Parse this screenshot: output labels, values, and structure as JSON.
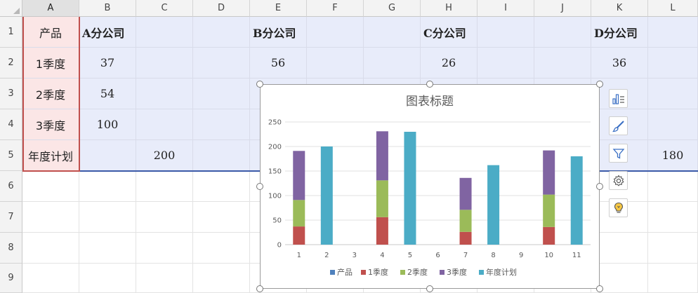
{
  "columns": [
    "A",
    "B",
    "C",
    "D",
    "E",
    "F",
    "G",
    "H",
    "I",
    "J",
    "K",
    "L"
  ],
  "rows": [
    "1",
    "2",
    "3",
    "4",
    "5",
    "6",
    "7",
    "8",
    "9"
  ],
  "cells": {
    "A1": "产品",
    "B1": "A分公司",
    "E1": "B分公司",
    "H1": "C分公司",
    "K1": "D分公司",
    "A2": "1季度",
    "B2": "37",
    "E2": "56",
    "H2": "26",
    "K2": "36",
    "A3": "2季度",
    "B3": "54",
    "A4": "3季度",
    "B4": "100",
    "A5": "年度计划",
    "C5": "200",
    "L5": "180"
  },
  "chart_data": {
    "type": "bar",
    "stacked": true,
    "title": "图表标题",
    "categories": [
      "1",
      "2",
      "3",
      "4",
      "5",
      "6",
      "7",
      "8",
      "9",
      "10",
      "11"
    ],
    "ylim": [
      0,
      250
    ],
    "yticks": [
      "0",
      "50",
      "100",
      "150",
      "200",
      "250"
    ],
    "grid": true,
    "legend_position": "bottom",
    "series": [
      {
        "name": "产品",
        "color": "#4f81bd",
        "values": [
          0,
          0,
          0,
          0,
          0,
          0,
          0,
          0,
          0,
          0,
          0
        ]
      },
      {
        "name": "1季度",
        "color": "#c0504d",
        "values": [
          37,
          0,
          0,
          56,
          0,
          0,
          26,
          0,
          0,
          36,
          0
        ]
      },
      {
        "name": "2季度",
        "color": "#9bbb59",
        "values": [
          54,
          0,
          0,
          75,
          0,
          0,
          45,
          0,
          0,
          66,
          0
        ]
      },
      {
        "name": "3季度",
        "color": "#8064a2",
        "values": [
          100,
          0,
          0,
          100,
          0,
          0,
          65,
          0,
          0,
          90,
          0
        ]
      },
      {
        "name": "年度计划",
        "color": "#4bacc6",
        "values": [
          0,
          200,
          0,
          0,
          230,
          0,
          0,
          162,
          0,
          0,
          180
        ]
      }
    ]
  },
  "chart_tools": [
    {
      "name": "chart-elements-icon"
    },
    {
      "name": "chart-style-brush-icon"
    },
    {
      "name": "chart-filter-icon"
    },
    {
      "name": "chart-settings-gear-icon"
    },
    {
      "name": "chart-tips-bulb-icon"
    }
  ]
}
